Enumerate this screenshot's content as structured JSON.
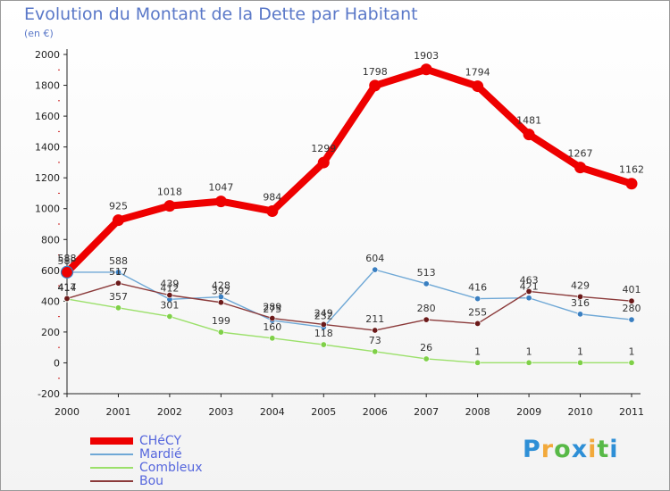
{
  "title": "Evolution du Montant de la Dette par Habitant",
  "subtitle": "(en €)",
  "logo": {
    "text": "Proxiti",
    "letter_colors": [
      "#2e8fd6",
      "#f2a93b",
      "#58b947",
      "#2e8fd6",
      "#f2a93b",
      "#58b947",
      "#2e8fd6"
    ]
  },
  "chart_data": {
    "type": "line",
    "title": "Evolution du Montant de la Dette par Habitant",
    "subtitle": "(en €)",
    "x": [
      "2000",
      "2001",
      "2002",
      "2003",
      "2004",
      "2005",
      "2006",
      "2007",
      "2008",
      "2009",
      "2010",
      "2011"
    ],
    "ylim": [
      -200,
      2000
    ],
    "yticks": [
      -200,
      0,
      200,
      400,
      600,
      800,
      1000,
      1200,
      1400,
      1600,
      1800,
      2000
    ],
    "grid": false,
    "legend": "bottom-left",
    "series": [
      {
        "name": "CHéCY",
        "color": "#ee0000",
        "width": "thick",
        "values": [
          588,
          925,
          1018,
          1047,
          984,
          1299,
          1798,
          1903,
          1794,
          1481,
          1267,
          1162
        ]
      },
      {
        "name": "Mardié",
        "color": "#6fa8d6",
        "width": "thin",
        "marker": "#3a7fc1",
        "values": [
          588,
          588,
          412,
          428,
          275,
          232,
          604,
          513,
          416,
          421,
          316,
          280
        ]
      },
      {
        "name": "Combleux",
        "color": "#9be06a",
        "width": "thin",
        "marker": "#7fd048",
        "values": [
          414,
          357,
          301,
          199,
          160,
          118,
          73,
          26,
          1,
          1,
          1,
          1
        ]
      },
      {
        "name": "Bou",
        "color": "#8b3a3a",
        "width": "thin",
        "marker": "#6b1a1a",
        "values": [
          417,
          517,
          439,
          392,
          289,
          249,
          211,
          280,
          255,
          463,
          429,
          401
        ]
      }
    ]
  }
}
